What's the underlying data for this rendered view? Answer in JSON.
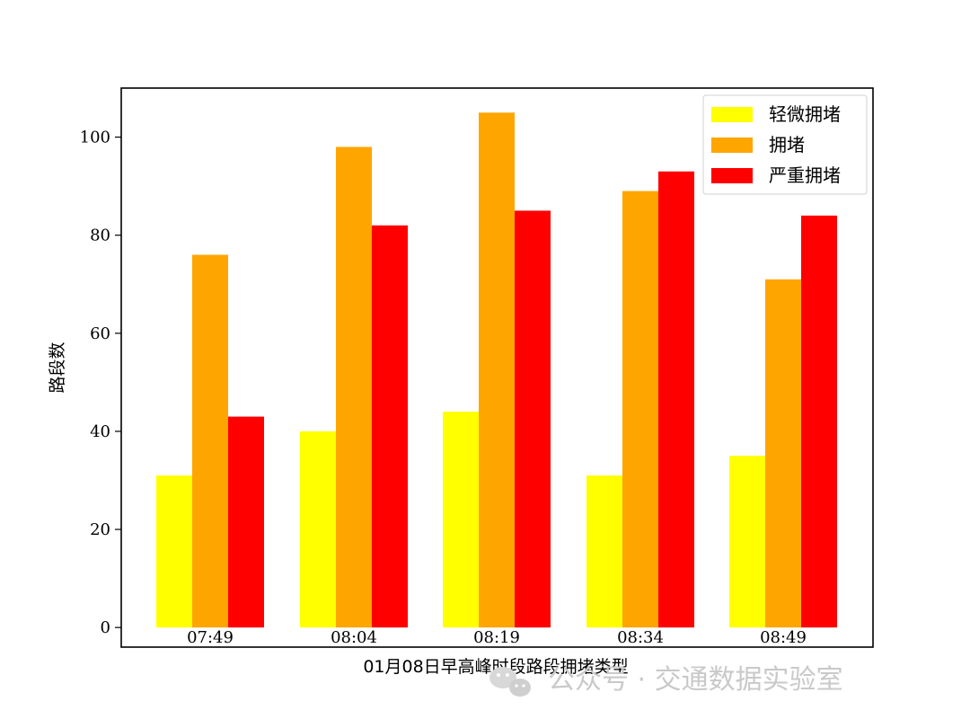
{
  "chart_data": {
    "type": "bar",
    "categories": [
      "07:49",
      "08:04",
      "08:19",
      "08:34",
      "08:49"
    ],
    "series": [
      {
        "name": "轻微拥堵",
        "color": "#ffff00",
        "values": [
          31,
          40,
          44,
          31,
          35
        ]
      },
      {
        "name": "拥堵",
        "color": "#ffa500",
        "values": [
          76,
          98,
          105,
          89,
          71
        ]
      },
      {
        "name": "严重拥堵",
        "color": "#ff0000",
        "values": [
          43,
          82,
          85,
          93,
          84
        ]
      }
    ],
    "title": "",
    "xlabel": "01月08日早高峰时段路段拥堵类型",
    "ylabel": "路段数",
    "ylim": [
      -4,
      110
    ],
    "yticks": [
      0,
      20,
      40,
      60,
      80,
      100
    ],
    "grid": false,
    "legend_position": "top-right"
  },
  "watermark": {
    "icon": "wechat-icon",
    "text": "公众号 · 交通数据实验室"
  }
}
